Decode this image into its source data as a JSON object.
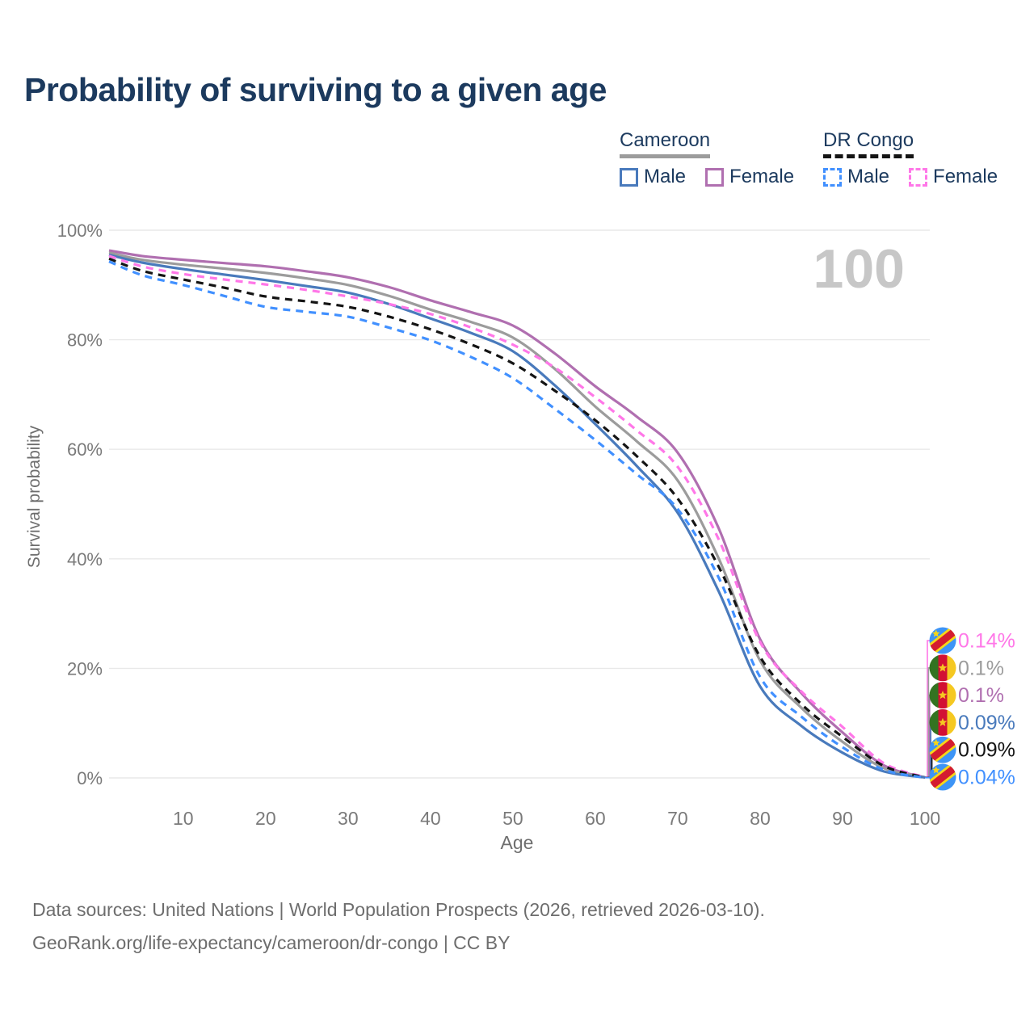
{
  "title": "Probability of surviving to a given age",
  "watermark_age": "100",
  "legend": {
    "groups": [
      {
        "name": "Cameroon",
        "line_style": "solid",
        "underline_color": "#9c9c9c",
        "items": [
          {
            "label": "Male",
            "color": "#497abc"
          },
          {
            "label": "Female",
            "color": "#b06fb0"
          }
        ]
      },
      {
        "name": "DR Congo",
        "line_style": "dashed",
        "underline_color": "#141414",
        "items": [
          {
            "label": "Male",
            "color": "#4190ff"
          },
          {
            "label": "Female",
            "color": "#ff77e8"
          }
        ]
      }
    ]
  },
  "axes": {
    "y_title": "Survival probability",
    "x_title": "Age",
    "y_ticks": [
      "100%",
      "80%",
      "60%",
      "40%",
      "20%",
      "0%"
    ],
    "x_ticks": [
      10,
      20,
      30,
      40,
      50,
      60,
      70,
      80,
      90,
      100
    ]
  },
  "footer": {
    "line1": "Data sources: United Nations | World Population Prospects (2026, retrieved 2026-03-10).",
    "line2": "GeoRank.org/life-expectancy/cameroon/dr-congo | CC BY"
  },
  "chart_data": {
    "type": "line",
    "title": "Probability of surviving to a given age",
    "xlabel": "Age",
    "ylabel": "Survival probability",
    "x_range": [
      1,
      100
    ],
    "ylim": [
      0,
      100
    ],
    "grid": "horizontal",
    "legend_position": "top-right",
    "ages": [
      1,
      5,
      10,
      15,
      20,
      25,
      30,
      35,
      40,
      45,
      50,
      55,
      60,
      65,
      70,
      75,
      80,
      85,
      90,
      95,
      100
    ],
    "series": [
      {
        "name": "Cameroon Female",
        "country": "Cameroon",
        "sex": "Female",
        "style": "solid",
        "color": "#b06fb0",
        "end_value_pct": 0.1,
        "values": [
          96.3,
          95.3,
          94.6,
          94.0,
          93.4,
          92.5,
          91.4,
          89.6,
          87.2,
          85.0,
          82.6,
          77.6,
          71.5,
          66.0,
          59.4,
          45.5,
          25.3,
          15.5,
          8.3,
          2.3,
          0.1
        ]
      },
      {
        "name": "Cameroon Both sexes",
        "country": "Cameroon",
        "sex": "Both",
        "style": "solid",
        "color": "#9c9c9c",
        "end_value_pct": 0.1,
        "values": [
          95.9,
          94.6,
          93.7,
          93.0,
          92.2,
          91.2,
          90.0,
          88.0,
          85.5,
          83.2,
          80.4,
          74.8,
          67.8,
          61.5,
          54.3,
          40.0,
          21.4,
          12.8,
          6.6,
          1.8,
          0.1
        ]
      },
      {
        "name": "Cameroon Male",
        "country": "Cameroon",
        "sex": "Male",
        "style": "solid",
        "color": "#497abc",
        "end_value_pct": 0.09,
        "values": [
          95.5,
          94.1,
          92.9,
          91.9,
          90.9,
          89.8,
          88.6,
          86.5,
          83.9,
          81.2,
          77.9,
          71.8,
          64.6,
          57.0,
          48.4,
          34.0,
          16.7,
          9.5,
          4.6,
          1.2,
          0.09
        ]
      },
      {
        "name": "DR Congo Female",
        "country": "DR Congo",
        "sex": "Female",
        "style": "dashed",
        "color": "#ff77e8",
        "end_value_pct": 0.14,
        "values": [
          95.3,
          93.4,
          92.0,
          91.0,
          90.1,
          89.1,
          87.9,
          86.5,
          84.7,
          82.2,
          79.1,
          75.0,
          69.5,
          63.5,
          56.8,
          43.5,
          24.8,
          15.8,
          9.3,
          2.7,
          0.14
        ]
      },
      {
        "name": "DR Congo Both sexes",
        "country": "DR Congo",
        "sex": "Both",
        "style": "dashed",
        "color": "#141414",
        "end_value_pct": 0.09,
        "values": [
          94.8,
          92.6,
          91.0,
          89.5,
          87.9,
          87.0,
          86.0,
          84.2,
          81.9,
          79.1,
          75.7,
          70.8,
          65.3,
          58.8,
          51.0,
          38.5,
          22.1,
          13.5,
          7.5,
          2.2,
          0.09
        ]
      },
      {
        "name": "DR Congo Male",
        "country": "DR Congo",
        "sex": "Male",
        "style": "dashed",
        "color": "#4190ff",
        "end_value_pct": 0.04,
        "values": [
          94.3,
          91.8,
          90.0,
          88.0,
          86.0,
          85.1,
          84.2,
          82.2,
          79.9,
          76.8,
          73.0,
          67.5,
          61.7,
          55.5,
          49.1,
          36.5,
          18.4,
          11.2,
          5.6,
          1.5,
          0.04
        ]
      }
    ],
    "end_labels": [
      {
        "series": "DR Congo Female",
        "text": "0.14%",
        "color": "#ff77e8",
        "flag": "dr-congo"
      },
      {
        "series": "Cameroon Both sexes",
        "text": "0.1%",
        "color": "#9c9c9c",
        "flag": "cameroon"
      },
      {
        "series": "Cameroon Female",
        "text": "0.1%",
        "color": "#b06fb0",
        "flag": "cameroon"
      },
      {
        "series": "Cameroon Male",
        "text": "0.09%",
        "color": "#497abc",
        "flag": "cameroon"
      },
      {
        "series": "DR Congo Both sexes",
        "text": "0.09%",
        "color": "#141414",
        "flag": "dr-congo"
      },
      {
        "series": "DR Congo Male",
        "text": "0.04%",
        "color": "#4190ff",
        "flag": "dr-congo"
      }
    ],
    "flag_colors": {
      "cameroon": {
        "green": "#337321",
        "red": "#d21034",
        "yellow": "#f5c821"
      },
      "dr_congo": {
        "blue": "#3d94f6",
        "yellow": "#f7d618",
        "red": "#d41c30"
      }
    }
  }
}
